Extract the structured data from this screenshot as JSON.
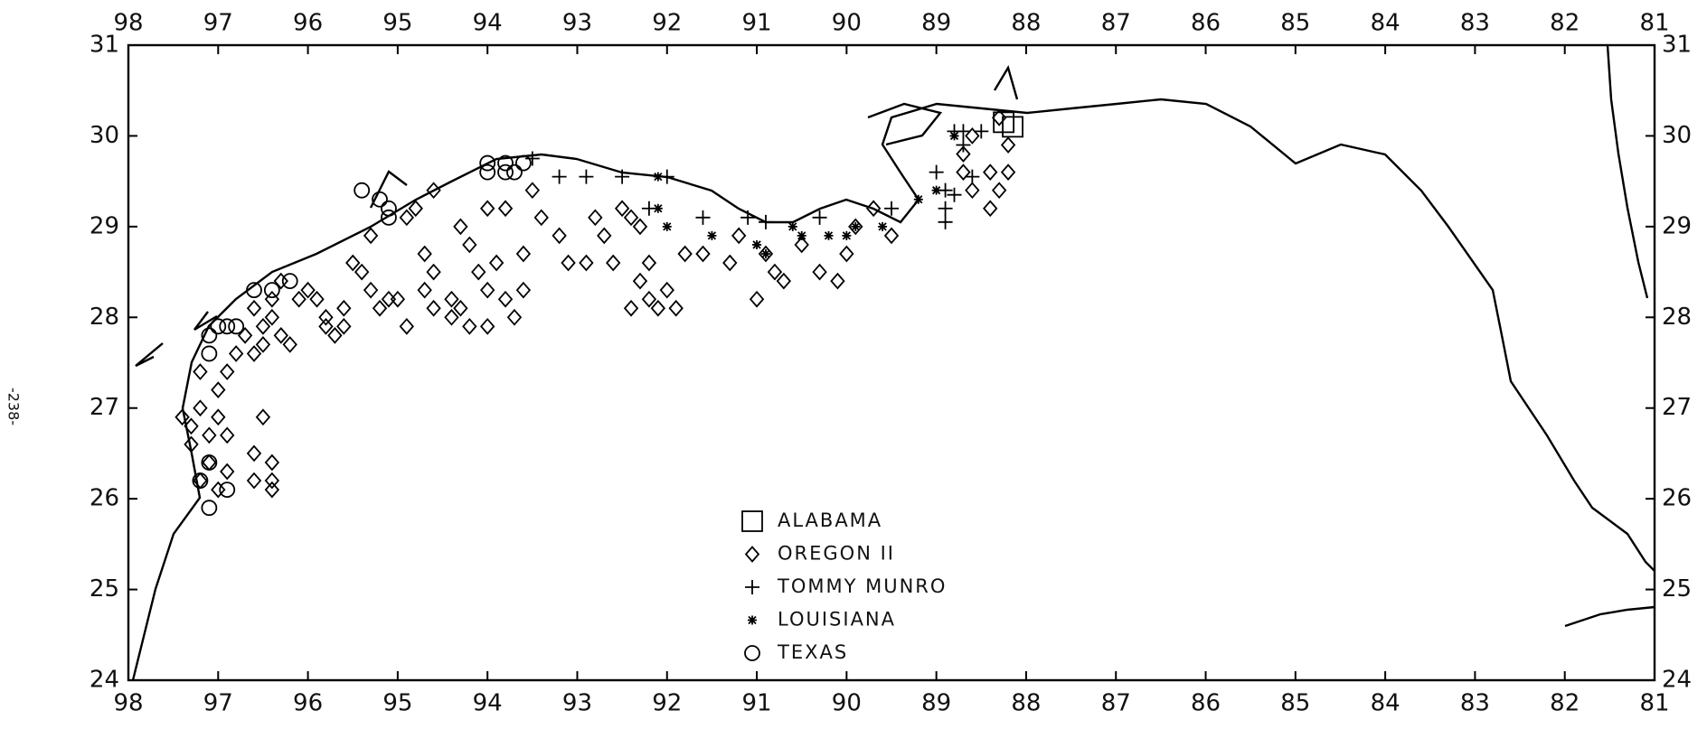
{
  "page_label": "-238-",
  "chart_data": {
    "type": "scatter",
    "xlim": [
      98,
      81
    ],
    "ylim": [
      24,
      31
    ],
    "xticks": [
      98,
      97,
      96,
      95,
      94,
      93,
      92,
      91,
      90,
      89,
      88,
      87,
      86,
      85,
      84,
      83,
      82,
      81
    ],
    "yticks": [
      24,
      25,
      26,
      27,
      28,
      29,
      30,
      31
    ],
    "series": [
      {
        "name": "ALABAMA",
        "marker": "square",
        "color": "#000000",
        "x": [
          88.15,
          88.25
        ],
        "y": [
          30.1,
          30.15
        ]
      },
      {
        "name": "OREGON II",
        "marker": "diamond",
        "color": "#000000",
        "x": [
          97.2,
          97.0,
          96.9,
          97.2,
          97.0,
          96.9,
          97.1,
          97.3,
          97.1,
          96.9,
          97.0,
          97.2,
          96.5,
          96.6,
          96.4,
          96.4,
          96.6,
          96.4,
          97.4,
          97.3,
          96.8,
          96.7,
          96.6,
          96.5,
          96.4,
          96.3,
          96.2,
          96.5,
          96.4,
          96.6,
          96.0,
          96.1,
          96.3,
          95.9,
          95.8,
          95.7,
          95.6,
          95.8,
          95.6,
          95.5,
          95.4,
          95.3,
          95.2,
          95.1,
          94.9,
          95.0,
          95.3,
          94.9,
          94.8,
          94.7,
          94.6,
          94.7,
          94.6,
          94.4,
          94.2,
          94.3,
          94.4,
          94.6,
          94.3,
          94.2,
          94.1,
          94.0,
          94.0,
          93.9,
          93.8,
          93.7,
          93.6,
          93.6,
          94.0,
          93.8,
          93.5,
          93.4,
          93.2,
          93.1,
          92.9,
          92.8,
          92.7,
          92.6,
          92.5,
          92.4,
          92.3,
          92.2,
          92.3,
          92.2,
          92.4,
          92.1,
          92.0,
          91.9,
          91.8,
          91.6,
          91.3,
          91.2,
          91.0,
          90.9,
          90.8,
          90.7,
          90.5,
          90.3,
          90.1,
          90.0,
          89.9,
          89.7,
          89.5,
          88.7,
          88.6,
          88.4,
          88.3,
          88.2,
          88.4,
          88.7,
          88.6,
          88.3,
          88.2
        ],
        "y": [
          27.4,
          27.2,
          27.4,
          27.0,
          26.9,
          26.7,
          26.7,
          26.6,
          26.4,
          26.3,
          26.1,
          26.2,
          26.9,
          26.5,
          26.4,
          26.2,
          26.2,
          26.1,
          26.9,
          26.8,
          27.6,
          27.8,
          27.6,
          27.9,
          28.0,
          27.8,
          27.7,
          27.7,
          28.2,
          28.1,
          28.3,
          28.2,
          28.4,
          28.2,
          28.0,
          27.8,
          27.9,
          27.9,
          28.1,
          28.6,
          28.5,
          28.3,
          28.1,
          28.2,
          27.9,
          28.2,
          28.9,
          29.1,
          29.2,
          28.7,
          28.5,
          28.3,
          28.1,
          28.0,
          27.9,
          28.1,
          28.2,
          29.4,
          29.0,
          28.8,
          28.5,
          28.3,
          27.9,
          28.6,
          28.2,
          28.0,
          28.3,
          28.7,
          29.2,
          29.2,
          29.4,
          29.1,
          28.9,
          28.6,
          28.6,
          29.1,
          28.9,
          28.6,
          29.2,
          29.1,
          29.0,
          28.6,
          28.4,
          28.2,
          28.1,
          28.1,
          28.3,
          28.1,
          28.7,
          28.7,
          28.6,
          28.9,
          28.2,
          28.7,
          28.5,
          28.4,
          28.8,
          28.5,
          28.4,
          28.7,
          29.0,
          29.2,
          28.9,
          29.6,
          29.4,
          29.2,
          29.4,
          29.6,
          29.6,
          29.8,
          30.0,
          30.2,
          29.9
        ]
      },
      {
        "name": "TOMMY MUNRO",
        "marker": "plus",
        "color": "#000000",
        "x": [
          93.2,
          92.9,
          92.5,
          92.2,
          92.0,
          91.6,
          91.1,
          90.9,
          90.3,
          89.5,
          89.0,
          88.9,
          88.9,
          88.9,
          88.8,
          88.6,
          88.7,
          88.7,
          88.5,
          88.8,
          93.5
        ],
        "y": [
          29.55,
          29.55,
          29.55,
          29.2,
          29.55,
          29.1,
          29.1,
          29.05,
          29.1,
          29.2,
          29.6,
          29.4,
          29.2,
          29.05,
          29.35,
          29.55,
          29.9,
          30.05,
          30.05,
          30.05,
          29.75
        ]
      },
      {
        "name": "LOUISIANA",
        "marker": "asterisk",
        "color": "#000000",
        "x": [
          92.1,
          92.0,
          91.5,
          91.0,
          90.9,
          90.6,
          90.5,
          90.2,
          89.9,
          89.6,
          89.2,
          89.0,
          88.8,
          92.1,
          90.0
        ],
        "y": [
          29.2,
          29.0,
          28.9,
          28.8,
          28.7,
          29.0,
          28.9,
          28.9,
          29.0,
          29.0,
          29.3,
          29.4,
          30.0,
          29.55,
          28.9
        ]
      },
      {
        "name": "TEXAS",
        "marker": "circle",
        "color": "#000000",
        "x": [
          97.0,
          97.1,
          96.9,
          97.1,
          96.8,
          97.1,
          97.2,
          96.9,
          97.1,
          96.6,
          96.4,
          96.2,
          95.4,
          95.2,
          95.1,
          95.1,
          94.0,
          94.0,
          93.8,
          93.7,
          93.6,
          93.8
        ],
        "y": [
          27.9,
          27.8,
          27.9,
          27.6,
          27.9,
          26.4,
          26.2,
          26.1,
          25.9,
          28.3,
          28.3,
          28.4,
          29.4,
          29.3,
          29.2,
          29.1,
          29.7,
          29.6,
          29.6,
          29.6,
          29.7,
          29.7
        ]
      }
    ]
  }
}
